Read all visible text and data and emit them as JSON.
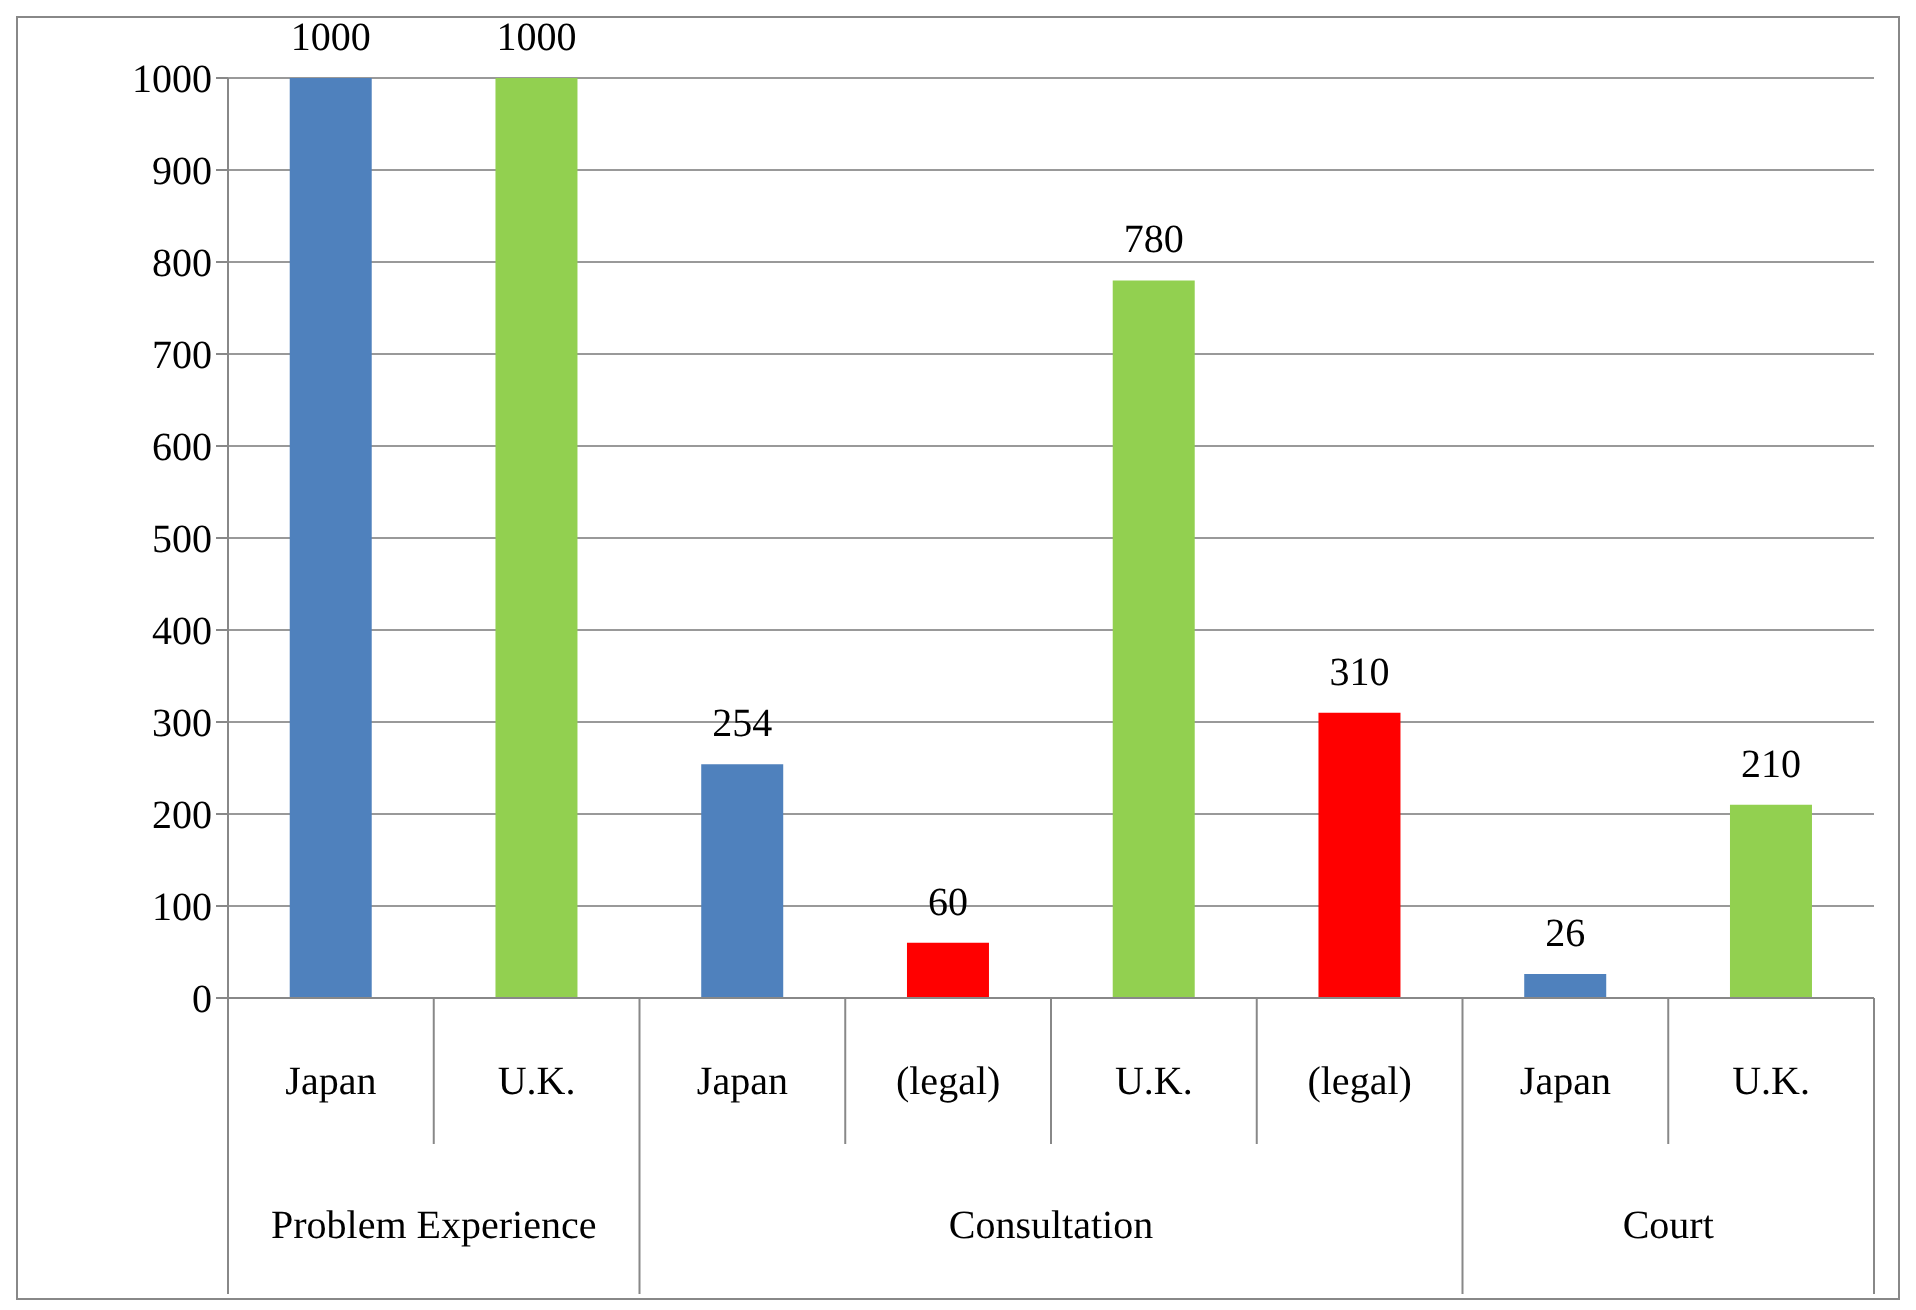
{
  "chart_data": {
    "type": "bar",
    "categories": [
      "Japan",
      "U.K.",
      "Japan",
      "(legal)",
      "U.K.",
      "(legal)",
      "Japan",
      "U.K."
    ],
    "values": [
      1000,
      1000,
      254,
      60,
      780,
      310,
      26,
      210
    ],
    "colors": [
      "#4f81bd",
      "#92d050",
      "#4f81bd",
      "#ff0000",
      "#92d050",
      "#ff0000",
      "#4f81bd",
      "#92d050"
    ],
    "annotations": [
      "Problem Experience",
      "Consultation",
      "Court"
    ],
    "ylim": [
      0,
      1000
    ],
    "yticks": [
      0,
      100,
      200,
      300,
      400,
      500,
      600,
      700,
      800,
      900,
      1000
    ],
    "grid": "y",
    "data_labels": true
  }
}
